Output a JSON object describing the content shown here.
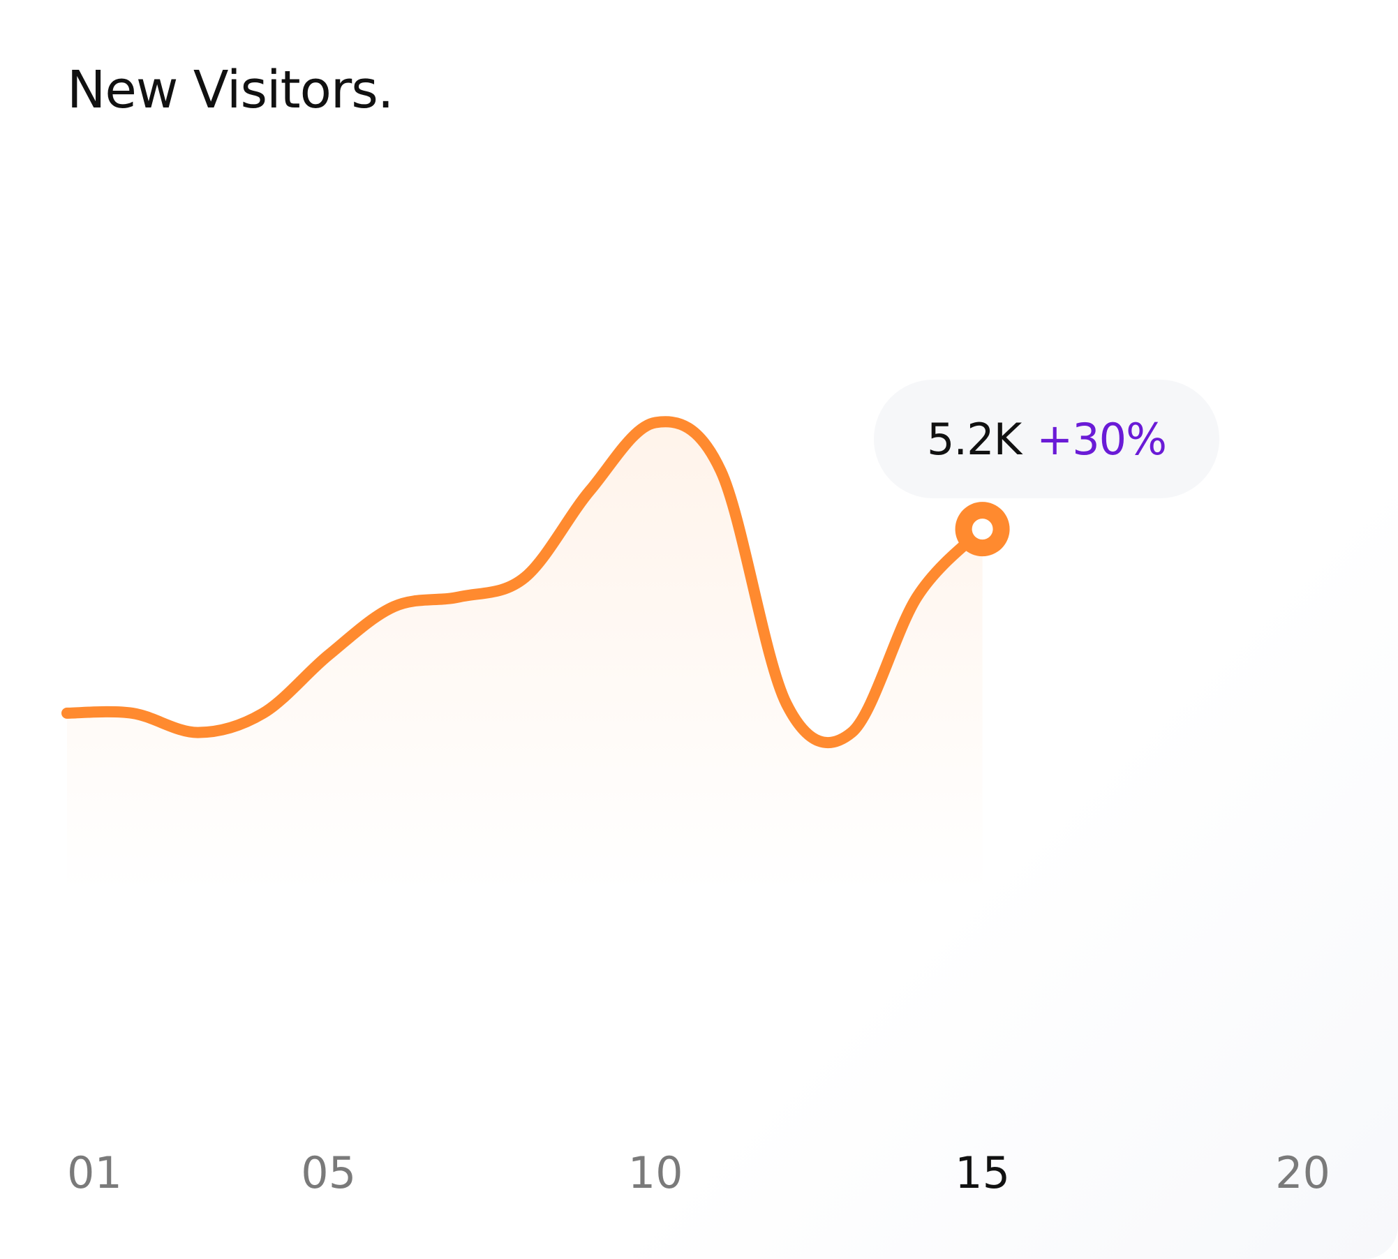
{
  "card": {
    "title": "New Visitors.",
    "highlight": {
      "value_label": "5.2K",
      "change_label": "+30%"
    }
  },
  "chart_data": {
    "type": "area",
    "title": "New Visitors.",
    "xlabel": "",
    "ylabel": "",
    "x": [
      1,
      2,
      3,
      4,
      5,
      6,
      7,
      8,
      9,
      10,
      11,
      12,
      13,
      14,
      15
    ],
    "y": [
      3.3,
      3.3,
      3.1,
      3.3,
      3.9,
      4.4,
      4.5,
      4.7,
      5.6,
      6.3,
      5.8,
      3.4,
      3.1,
      4.5,
      5.2
    ],
    "xlim": [
      1,
      20
    ],
    "ylim": [
      0,
      8.5
    ],
    "xticks": [
      {
        "value": 1,
        "label": "01"
      },
      {
        "value": 5,
        "label": "05"
      },
      {
        "value": 10,
        "label": "10"
      },
      {
        "value": 15,
        "label": "15"
      },
      {
        "value": 20,
        "label": "20"
      }
    ],
    "active_tick": "15",
    "highlight_point": {
      "x": 15,
      "y": 5.2
    },
    "colors": {
      "line": "#ff8a2f",
      "area": "#ff8a2f",
      "tick": "#7a7a7a",
      "active_tick": "#111111",
      "change": "#6a1bd6"
    }
  }
}
